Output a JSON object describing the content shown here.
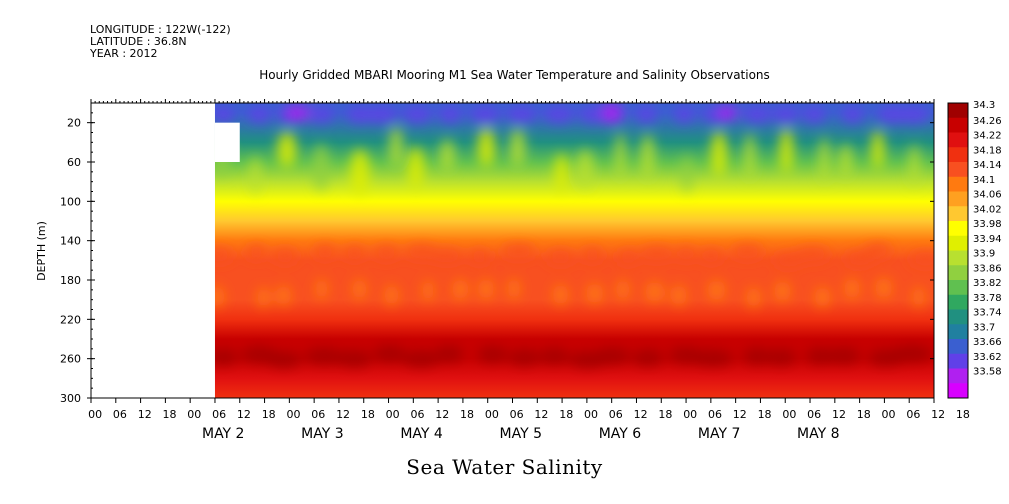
{
  "header": {
    "longitude": "LONGITUDE : 122W(-122)",
    "latitude": "LATITUDE : 36.8N",
    "year": "YEAR : 2012"
  },
  "chart_data": {
    "type": "heatmap",
    "title": "Hourly Gridded MBARI Mooring M1 Sea Water Temperature and Salinity Observations",
    "variable_label": "Sea Water Salinity",
    "ylabel": "DEPTH (m)",
    "ylim": [
      300,
      0
    ],
    "y_ticks": [
      20,
      60,
      100,
      140,
      180,
      220,
      260,
      300
    ],
    "x_hour_ticks": [
      "00",
      "06",
      "12",
      "18",
      "00",
      "06",
      "12",
      "18",
      "00",
      "06",
      "12",
      "18",
      "00",
      "06",
      "12",
      "18",
      "00",
      "06",
      "12",
      "18",
      "00",
      "06",
      "12",
      "18",
      "00",
      "06",
      "12",
      "18",
      "00",
      "06",
      "12",
      "18",
      "00",
      "06",
      "12",
      "18"
    ],
    "x_day_labels": [
      "MAY  2",
      "MAY  3",
      "MAY  4",
      "MAY  5",
      "MAY  6",
      "MAY  7",
      "MAY  8"
    ],
    "colorbar": {
      "levels": [
        34.3,
        34.26,
        34.22,
        34.18,
        34.14,
        34.1,
        34.06,
        34.02,
        33.98,
        33.94,
        33.9,
        33.86,
        33.82,
        33.78,
        33.74,
        33.7,
        33.66,
        33.62,
        33.58
      ],
      "labels": [
        "34.3",
        "34.26",
        "34.22",
        "34.18",
        "34.14",
        "34.1",
        "34.06",
        "34.02",
        "33.98",
        "33.94",
        "33.9",
        "33.86",
        "33.82",
        "33.78",
        "33.74",
        "33.7",
        "33.66",
        "33.62",
        "33.58"
      ],
      "colors": [
        "#a00000",
        "#c80000",
        "#e01010",
        "#f03010",
        "#f85020",
        "#ff7a10",
        "#ffa020",
        "#ffc830",
        "#ffff00",
        "#e0ef00",
        "#b8e030",
        "#90d040",
        "#60c050",
        "#30a860",
        "#209080",
        "#2080a0",
        "#3a5fd0",
        "#6040e8",
        "#b020f0",
        "#d800ff"
      ]
    },
    "depth_profile": [
      {
        "depth": 10,
        "salinity": 33.68
      },
      {
        "depth": 40,
        "salinity": 33.74
      },
      {
        "depth": 60,
        "salinity": 33.82
      },
      {
        "depth": 80,
        "salinity": 33.9
      },
      {
        "depth": 100,
        "salinity": 33.98
      },
      {
        "depth": 120,
        "salinity": 34.04
      },
      {
        "depth": 140,
        "salinity": 34.1
      },
      {
        "depth": 160,
        "salinity": 34.14
      },
      {
        "depth": 180,
        "salinity": 34.14
      },
      {
        "depth": 200,
        "salinity": 34.16
      },
      {
        "depth": 220,
        "salinity": 34.2
      },
      {
        "depth": 240,
        "salinity": 34.26
      },
      {
        "depth": 260,
        "salinity": 34.28
      },
      {
        "depth": 280,
        "salinity": 34.24
      },
      {
        "depth": 300,
        "salinity": 34.2
      }
    ],
    "missing_data": [
      {
        "hours_from_may1_00": [
          0,
          30
        ],
        "depth": [
          0,
          300
        ]
      },
      {
        "hours_from_may1_00": [
          30,
          36
        ],
        "depth": [
          20,
          60
        ]
      }
    ]
  }
}
